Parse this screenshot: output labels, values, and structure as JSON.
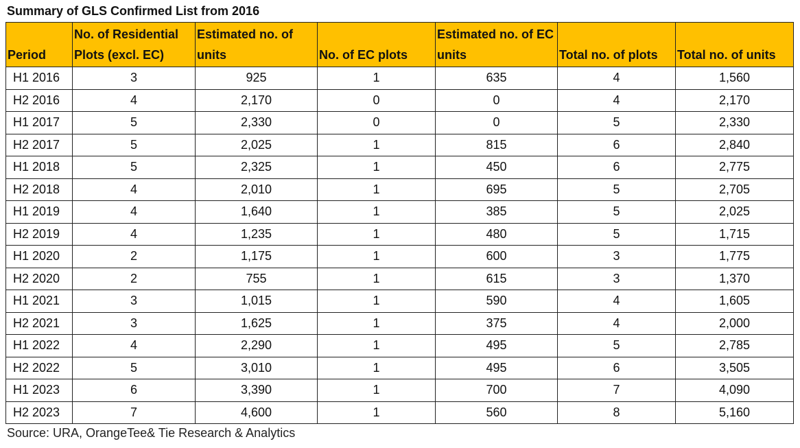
{
  "title": "Summary of GLS Confirmed List from 2016",
  "columns": [
    "Period",
    "No. of Residential Plots (excl. EC)",
    "Estimated no. of units",
    "No. of EC plots",
    "Estimated no. of EC units",
    "Total no. of plots",
    "Total no. of units"
  ],
  "rows": [
    [
      "H1 2016",
      "3",
      "925",
      "1",
      "635",
      "4",
      "1,560"
    ],
    [
      "H2 2016",
      "4",
      "2,170",
      "0",
      "0",
      "4",
      "2,170"
    ],
    [
      "H1 2017",
      "5",
      "2,330",
      "0",
      "0",
      "5",
      "2,330"
    ],
    [
      "H2 2017",
      "5",
      "2,025",
      "1",
      "815",
      "6",
      "2,840"
    ],
    [
      "H1 2018",
      "5",
      "2,325",
      "1",
      "450",
      "6",
      "2,775"
    ],
    [
      "H2 2018",
      "4",
      "2,010",
      "1",
      "695",
      "5",
      "2,705"
    ],
    [
      "H1 2019",
      "4",
      "1,640",
      "1",
      "385",
      "5",
      "2,025"
    ],
    [
      "H2 2019",
      "4",
      "1,235",
      "1",
      "480",
      "5",
      "1,715"
    ],
    [
      "H1 2020",
      "2",
      "1,175",
      "1",
      "600",
      "3",
      "1,775"
    ],
    [
      "H2 2020",
      "2",
      "755",
      "1",
      "615",
      "3",
      "1,370"
    ],
    [
      "H1 2021",
      "3",
      "1,015",
      "1",
      "590",
      "4",
      "1,605"
    ],
    [
      "H2 2021",
      "3",
      "1,625",
      "1",
      "375",
      "4",
      "2,000"
    ],
    [
      "H1 2022",
      "4",
      "2,290",
      "1",
      "495",
      "5",
      "2,785"
    ],
    [
      "H2 2022",
      "5",
      "3,010",
      "1",
      "495",
      "6",
      "3,505"
    ],
    [
      "H1 2023",
      "6",
      "3,390",
      "1",
      "700",
      "7",
      "4,090"
    ],
    [
      "H2 2023",
      "7",
      "4,600",
      "1",
      "560",
      "8",
      "5,160"
    ]
  ],
  "source": "Source: URA, OrangeTee& Tie Research & Analytics",
  "colors": {
    "header_fill": "#ffc000",
    "border": "#222222",
    "text": "#111111"
  }
}
